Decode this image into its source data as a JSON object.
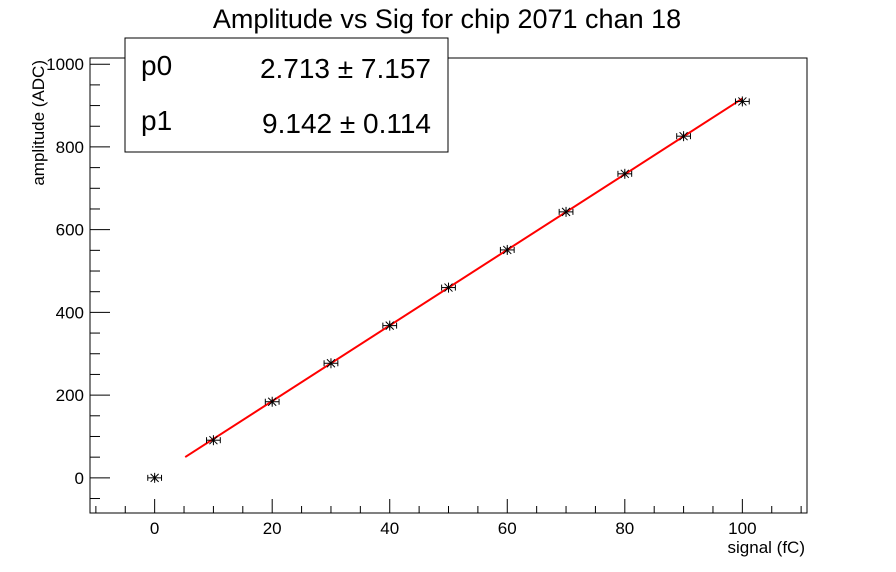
{
  "chart_data": {
    "type": "scatter",
    "title": "Amplitude vs Sig for chip 2071 chan 18",
    "xlabel": "signal (fC)",
    "ylabel": "amplitude (ADC)",
    "xlim": [
      -11,
      111
    ],
    "ylim": [
      -85,
      1015
    ],
    "x_ticks": [
      0,
      20,
      40,
      60,
      80,
      100
    ],
    "y_ticks": [
      0,
      200,
      400,
      600,
      800,
      1000
    ],
    "grid": false,
    "series": [
      {
        "x": [
          0,
          10,
          20,
          30,
          40,
          50,
          60,
          70,
          80,
          90,
          100
        ],
        "y": [
          0,
          91,
          184,
          277,
          368,
          460,
          551,
          643,
          735,
          826,
          910
        ],
        "x_err": [
          1,
          1,
          1,
          1,
          1,
          1,
          1,
          1,
          1,
          1,
          1
        ],
        "y_err": [
          3,
          3,
          3,
          3,
          3,
          3,
          3,
          3,
          3,
          3,
          3
        ],
        "color": "#000000"
      }
    ],
    "fit": {
      "p0": 2.713,
      "p1": 9.142,
      "x_range": [
        5.2,
        100
      ],
      "color": "#ff0000"
    },
    "stats_box": {
      "placement": "top-left",
      "rows": [
        {
          "name": "p0",
          "value": "2.713 ± 7.157"
        },
        {
          "name": "p1",
          "value": "9.142 ± 0.114"
        }
      ]
    }
  }
}
